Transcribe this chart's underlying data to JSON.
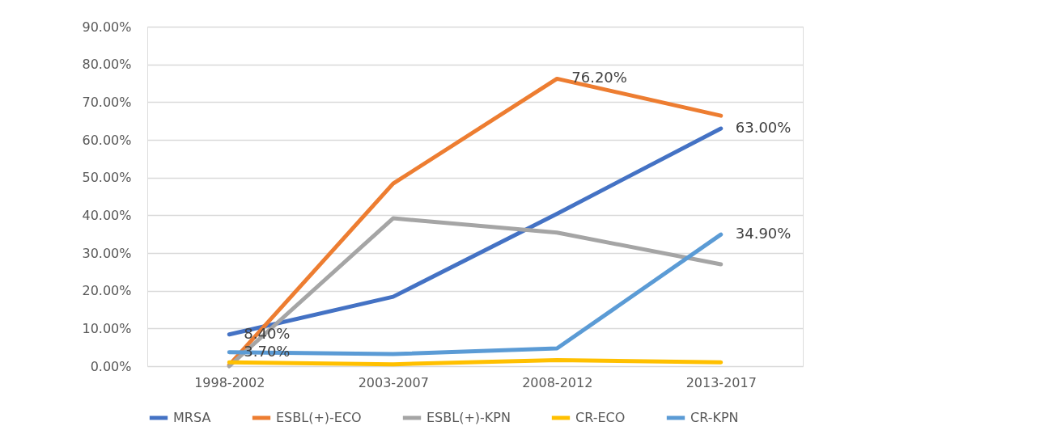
{
  "chart_data": {
    "type": "line",
    "categories": [
      "1998-2002",
      "2003-2007",
      "2008-2012",
      "2013-2017"
    ],
    "series": [
      {
        "name": "MRSA",
        "color": "#4472c4",
        "values": [
          8.4,
          18.4,
          40.4,
          63.0
        ],
        "value_labels": [
          "8.40%",
          null,
          null,
          "63.00%"
        ]
      },
      {
        "name": "ESBL(+)-ECO",
        "color": "#ed7d31",
        "values": [
          0.3,
          48.4,
          76.2,
          66.4
        ],
        "value_labels": [
          null,
          null,
          "76.20%",
          null
        ]
      },
      {
        "name": "ESBL(+)-KPN",
        "color": "#a5a5a5",
        "values": [
          0,
          39.2,
          35.4,
          27.0
        ]
      },
      {
        "name": "CR-ECO",
        "color": "#ffc000",
        "values": [
          1.0,
          0.5,
          1.6,
          1.0
        ]
      },
      {
        "name": "CR-KPN",
        "color": "#5b9bd5",
        "values": [
          3.7,
          3.2,
          4.7,
          34.9
        ],
        "value_labels": [
          "3.70%",
          null,
          null,
          "34.90%"
        ]
      }
    ],
    "ylim": [
      0,
      90
    ],
    "yticks": [
      {
        "value": 0,
        "label": "0.00%"
      },
      {
        "value": 10,
        "label": "10.00%"
      },
      {
        "value": 20,
        "label": "20.00%"
      },
      {
        "value": 30,
        "label": "30.00%"
      },
      {
        "value": 40,
        "label": "40.00%"
      },
      {
        "value": 50,
        "label": "50.00%"
      },
      {
        "value": 60,
        "label": "60.00%"
      },
      {
        "value": 70,
        "label": "70.00%"
      },
      {
        "value": 80,
        "label": "80.00%"
      },
      {
        "value": 90,
        "label": "90.00%"
      }
    ],
    "grid": "y",
    "legend": "bottom",
    "line_style": "solid"
  }
}
